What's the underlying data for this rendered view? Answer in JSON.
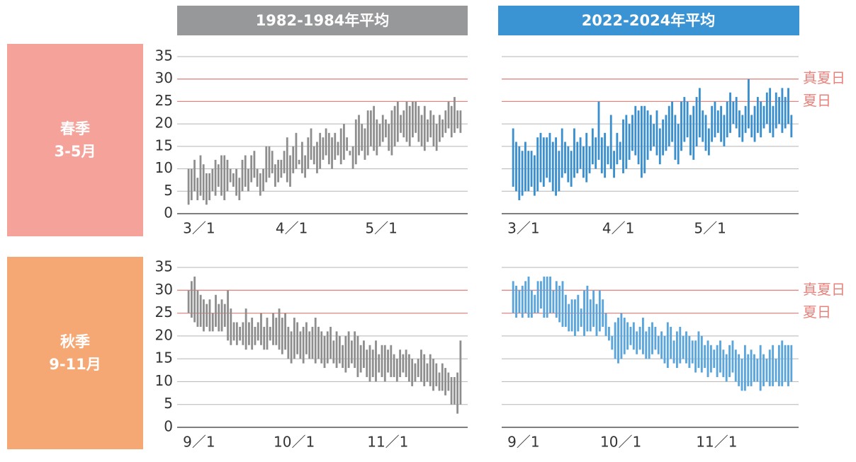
{
  "columns": [
    "1982-1984年平均",
    "2022-2024年平均"
  ],
  "rows": [
    {
      "season": "春季",
      "months": "3-5月"
    },
    {
      "season": "秋季",
      "months": "9-11月"
    }
  ],
  "chart_data": [
    {
      "type": "range-bar",
      "color": "#8e8e8e",
      "ylim": [
        0,
        35
      ],
      "yticks": [
        0,
        5,
        10,
        15,
        20,
        25,
        30,
        35
      ],
      "ytick_labels": true,
      "categories": [
        "3／1",
        null,
        null,
        null,
        null,
        null,
        null,
        null,
        null,
        null,
        null,
        null,
        null,
        null,
        null,
        null,
        null,
        null,
        null,
        null,
        null,
        null,
        null,
        null,
        null,
        null,
        null,
        null,
        null,
        null,
        null,
        "4／1",
        null,
        null,
        null,
        null,
        null,
        null,
        null,
        null,
        null,
        null,
        null,
        null,
        null,
        null,
        null,
        null,
        null,
        null,
        null,
        null,
        null,
        null,
        null,
        null,
        null,
        null,
        null,
        null,
        null,
        "5／1",
        null,
        null,
        null,
        null,
        null,
        null,
        null,
        null,
        null,
        null,
        null,
        null,
        null,
        null,
        null,
        null,
        null,
        null,
        null,
        null,
        null,
        null,
        null,
        null,
        null,
        null,
        null,
        null,
        null,
        null
      ],
      "lows": [
        2,
        3,
        5,
        3,
        4,
        3,
        2,
        3,
        5,
        4,
        6,
        4,
        3,
        5,
        7,
        6,
        4,
        3,
        5,
        6,
        5,
        7,
        8,
        6,
        4,
        5,
        7,
        8,
        9,
        6,
        7,
        8,
        9,
        7,
        6,
        9,
        10,
        11,
        9,
        8,
        10,
        12,
        11,
        9,
        10,
        12,
        13,
        11,
        10,
        12,
        13,
        11,
        12,
        14,
        13,
        10,
        11,
        13,
        14,
        12,
        13,
        15,
        14,
        13,
        15,
        16,
        17,
        14,
        13,
        15,
        16,
        18,
        17,
        16,
        15,
        17,
        18,
        16,
        15,
        14,
        16,
        17,
        15,
        14,
        16,
        17,
        18,
        19,
        17,
        18,
        19,
        18
      ],
      "highs": [
        10,
        10,
        12,
        8,
        13,
        11,
        9,
        9,
        10,
        12,
        11,
        13,
        13,
        12,
        10,
        9,
        10,
        8,
        12,
        13,
        10,
        13,
        14,
        10,
        9,
        10,
        15,
        15,
        14,
        11,
        12,
        12,
        14,
        17,
        13,
        15,
        18,
        12,
        16,
        13,
        17,
        19,
        15,
        16,
        18,
        17,
        19,
        18,
        17,
        18,
        16,
        19,
        20,
        17,
        14,
        15,
        21,
        22,
        20,
        19,
        23,
        23,
        24,
        21,
        20,
        22,
        21,
        20,
        23,
        24,
        25,
        22,
        23,
        25,
        24,
        25,
        25,
        24,
        22,
        24,
        21,
        23,
        22,
        20,
        22,
        21,
        23,
        25,
        24,
        26,
        23,
        23
      ],
      "reference_lines": [
        {
          "value": 30,
          "color": "#e8827c"
        },
        {
          "value": 25,
          "color": "#e8827c"
        }
      ]
    },
    {
      "type": "range-bar",
      "color": "#3a8fcf",
      "ylim": [
        0,
        35
      ],
      "yticks": [
        0,
        5,
        10,
        15,
        20,
        25,
        30,
        35
      ],
      "ytick_labels": false,
      "categories": [
        "3／1",
        null,
        null,
        null,
        null,
        null,
        null,
        null,
        null,
        null,
        null,
        null,
        null,
        null,
        null,
        null,
        null,
        null,
        null,
        null,
        null,
        null,
        null,
        null,
        null,
        null,
        null,
        null,
        null,
        null,
        null,
        "4／1",
        null,
        null,
        null,
        null,
        null,
        null,
        null,
        null,
        null,
        null,
        null,
        null,
        null,
        null,
        null,
        null,
        null,
        null,
        null,
        null,
        null,
        null,
        null,
        null,
        null,
        null,
        null,
        null,
        null,
        "5／1",
        null,
        null,
        null,
        null,
        null,
        null,
        null,
        null,
        null,
        null,
        null,
        null,
        null,
        null,
        null,
        null,
        null,
        null,
        null,
        null,
        null,
        null,
        null,
        null,
        null,
        null,
        null,
        null,
        null,
        null
      ],
      "lows": [
        6,
        5,
        3,
        4,
        5,
        5,
        6,
        4,
        5,
        7,
        6,
        8,
        7,
        5,
        4,
        5,
        8,
        9,
        7,
        6,
        8,
        9,
        10,
        8,
        7,
        9,
        11,
        10,
        12,
        9,
        8,
        11,
        10,
        8,
        11,
        12,
        9,
        10,
        12,
        14,
        13,
        11,
        8,
        9,
        12,
        14,
        15,
        13,
        11,
        13,
        14,
        15,
        16,
        12,
        11,
        14,
        16,
        17,
        13,
        12,
        15,
        17,
        16,
        14,
        13,
        16,
        17,
        18,
        16,
        15,
        17,
        18,
        20,
        19,
        17,
        16,
        18,
        19,
        17,
        16,
        18,
        17,
        19,
        20,
        18,
        17,
        19,
        20,
        18,
        19,
        20,
        17
      ],
      "highs": [
        19,
        16,
        15,
        14,
        16,
        14,
        14,
        13,
        17,
        18,
        17,
        17,
        18,
        16,
        17,
        14,
        19,
        16,
        15,
        14,
        19,
        16,
        17,
        15,
        18,
        15,
        19,
        17,
        25,
        17,
        18,
        15,
        22,
        14,
        18,
        16,
        21,
        22,
        20,
        22,
        24,
        23,
        24,
        24,
        23,
        22,
        20,
        23,
        19,
        21,
        22,
        24,
        25,
        22,
        20,
        25,
        26,
        25,
        22,
        24,
        26,
        28,
        23,
        22,
        19,
        24,
        25,
        23,
        24,
        22,
        25,
        27,
        25,
        26,
        23,
        22,
        24,
        30,
        22,
        24,
        26,
        25,
        24,
        27,
        28,
        24,
        27,
        26,
        28,
        26,
        28,
        22
      ],
      "reference_lines": [
        {
          "value": 30,
          "color": "#e8827c",
          "label": "真夏日"
        },
        {
          "value": 25,
          "color": "#e8827c",
          "label": "夏日"
        }
      ]
    },
    {
      "type": "range-bar",
      "color": "#8e8e8e",
      "ylim": [
        0,
        35
      ],
      "yticks": [
        0,
        5,
        10,
        15,
        20,
        25,
        30,
        35
      ],
      "ytick_labels": true,
      "categories": [
        "9／1",
        null,
        null,
        null,
        null,
        null,
        null,
        null,
        null,
        null,
        null,
        null,
        null,
        null,
        null,
        null,
        null,
        null,
        null,
        null,
        null,
        null,
        null,
        null,
        null,
        null,
        null,
        null,
        null,
        null,
        "10／1",
        null,
        null,
        null,
        null,
        null,
        null,
        null,
        null,
        null,
        null,
        null,
        null,
        null,
        null,
        null,
        null,
        null,
        null,
        null,
        null,
        null,
        null,
        null,
        null,
        null,
        null,
        null,
        null,
        null,
        null,
        "11／1",
        null,
        null,
        null,
        null,
        null,
        null,
        null,
        null,
        null,
        null,
        null,
        null,
        null,
        null,
        null,
        null,
        null,
        null,
        null,
        null,
        null,
        null,
        null,
        null,
        null,
        null,
        null,
        null,
        null
      ],
      "lows": [
        25,
        24,
        23,
        22,
        22,
        21,
        22,
        21,
        21,
        22,
        21,
        21,
        22,
        19,
        18,
        19,
        18,
        19,
        18,
        17,
        18,
        17,
        18,
        19,
        18,
        17,
        17,
        19,
        18,
        18,
        17,
        16,
        17,
        15,
        14,
        15,
        16,
        15,
        14,
        16,
        15,
        15,
        14,
        15,
        14,
        13,
        14,
        15,
        14,
        13,
        14,
        13,
        12,
        13,
        14,
        13,
        11,
        12,
        13,
        11,
        10,
        11,
        10,
        12,
        11,
        10,
        12,
        11,
        11,
        10,
        11,
        12,
        11,
        10,
        9,
        10,
        11,
        10,
        9,
        10,
        9,
        8,
        9,
        8,
        8,
        7,
        8,
        5,
        5,
        3,
        5
      ],
      "highs": [
        30,
        32,
        33,
        30,
        29,
        28,
        27,
        28,
        25,
        29,
        27,
        28,
        27,
        30,
        26,
        23,
        23,
        22,
        23,
        26,
        23,
        24,
        22,
        23,
        25,
        22,
        24,
        22,
        25,
        24,
        26,
        24,
        25,
        22,
        21,
        24,
        23,
        21,
        22,
        23,
        21,
        22,
        24,
        22,
        21,
        20,
        21,
        22,
        19,
        21,
        20,
        18,
        20,
        21,
        19,
        21,
        20,
        18,
        19,
        17,
        18,
        17,
        19,
        16,
        18,
        18,
        17,
        18,
        16,
        15,
        17,
        16,
        17,
        16,
        15,
        14,
        15,
        17,
        16,
        14,
        16,
        15,
        14,
        12,
        14,
        13,
        12,
        11,
        11,
        12,
        19
      ],
      "reference_lines": [
        {
          "value": 30,
          "color": "#e8827c"
        },
        {
          "value": 25,
          "color": "#e8827c"
        }
      ]
    },
    {
      "type": "range-bar",
      "color": "#5aa5dc",
      "ylim": [
        0,
        35
      ],
      "yticks": [
        0,
        5,
        10,
        15,
        20,
        25,
        30,
        35
      ],
      "ytick_labels": false,
      "categories": [
        "9／1",
        null,
        null,
        null,
        null,
        null,
        null,
        null,
        null,
        null,
        null,
        null,
        null,
        null,
        null,
        null,
        null,
        null,
        null,
        null,
        null,
        null,
        null,
        null,
        null,
        null,
        null,
        null,
        null,
        null,
        "10／1",
        null,
        null,
        null,
        null,
        null,
        null,
        null,
        null,
        null,
        null,
        null,
        null,
        null,
        null,
        null,
        null,
        null,
        null,
        null,
        null,
        null,
        null,
        null,
        null,
        null,
        null,
        null,
        null,
        null,
        null,
        "11／1",
        null,
        null,
        null,
        null,
        null,
        null,
        null,
        null,
        null,
        null,
        null,
        null,
        null,
        null,
        null,
        null,
        null,
        null,
        null,
        null,
        null,
        null,
        null,
        null,
        null,
        null,
        null,
        null,
        null
      ],
      "lows": [
        25,
        24,
        25,
        24,
        25,
        24,
        24,
        25,
        25,
        26,
        24,
        24,
        25,
        25,
        24,
        23,
        22,
        22,
        21,
        21,
        20,
        21,
        22,
        20,
        21,
        21,
        22,
        20,
        21,
        22,
        20,
        19,
        17,
        15,
        14,
        15,
        16,
        17,
        18,
        17,
        16,
        17,
        16,
        15,
        15,
        16,
        17,
        16,
        15,
        14,
        13,
        15,
        14,
        13,
        14,
        15,
        14,
        13,
        14,
        12,
        13,
        12,
        13,
        11,
        12,
        13,
        11,
        12,
        11,
        10,
        11,
        12,
        10,
        9,
        8,
        8,
        9,
        9,
        10,
        10,
        8,
        9,
        10,
        9,
        9,
        10,
        9,
        9,
        10,
        9,
        10
      ],
      "highs": [
        32,
        31,
        30,
        31,
        32,
        33,
        30,
        29,
        32,
        32,
        33,
        33,
        33,
        30,
        32,
        31,
        32,
        29,
        27,
        28,
        28,
        29,
        26,
        30,
        31,
        28,
        30,
        27,
        30,
        28,
        25,
        22,
        20,
        23,
        24,
        25,
        24,
        23,
        22,
        23,
        21,
        22,
        24,
        21,
        22,
        23,
        22,
        20,
        21,
        20,
        23,
        22,
        19,
        21,
        22,
        20,
        21,
        20,
        19,
        19,
        21,
        20,
        18,
        19,
        18,
        17,
        18,
        19,
        17,
        16,
        18,
        19,
        17,
        16,
        15,
        18,
        16,
        17,
        16,
        15,
        18,
        16,
        15,
        17,
        18,
        15,
        18,
        19,
        18,
        18,
        18
      ],
      "reference_lines": [
        {
          "value": 30,
          "color": "#e8827c",
          "label": "真夏日"
        },
        {
          "value": 25,
          "color": "#e8827c",
          "label": "夏日"
        }
      ]
    }
  ]
}
